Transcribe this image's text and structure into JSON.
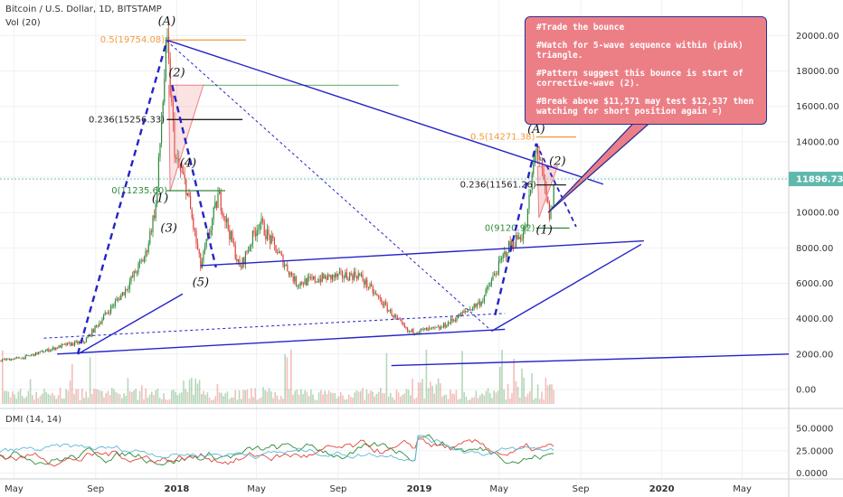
{
  "header": {
    "symbol": "Bitcoin / U.S. Dollar, 1D, BITSTAMP",
    "volume": "Vol (20)",
    "dmi": "DMI (14, 14)"
  },
  "price_box": {
    "value": "11896.73",
    "color": "#5fb8ac"
  },
  "colors": {
    "trendline": "#2424c8",
    "fib_orange": "#f39a3d",
    "up": "#2e8b3a",
    "down": "#e0443c"
  },
  "callout": {
    "lines": [
      "#Trade the bounce",
      "#Watch for 5-wave sequence within (pink) triangle.",
      "#Pattern suggest this bounce is start of corrective-wave (2).",
      "#Break above $11,571 may test $12,537 then watching for short position again =)"
    ]
  },
  "chart_data": [
    {
      "type": "line",
      "title": "Bitcoin / U.S. Dollar, 1D, BITSTAMP",
      "x_ticks": [
        "May",
        "Sep",
        "2018",
        "May",
        "Sep",
        "2019",
        "May",
        "Sep",
        "2020",
        "May"
      ],
      "y_ticks": [
        "20000.00",
        "18000.00",
        "16000.00",
        "14000.00",
        "12000.00",
        "10000.00",
        "8000.00",
        "6000.00",
        "4000.00",
        "2000.00",
        "0.00"
      ],
      "ylim": [
        0,
        21800
      ],
      "x": [
        "2017-05",
        "2017-07",
        "2017-08",
        "2017-09",
        "2017-10",
        "2017-11",
        "2017-12-01",
        "2017-12-17",
        "2017-12-30",
        "2018-01-15",
        "2018-02-06",
        "2018-03-05",
        "2018-04-06",
        "2018-05-05",
        "2018-06-30",
        "2018-08-10",
        "2018-10-01",
        "2018-11-20",
        "2018-12-15",
        "2019-02-01",
        "2019-04-05",
        "2019-05-14",
        "2019-06-10",
        "2019-06-26",
        "2019-07-17",
        "2019-07-24"
      ],
      "series": [
        {
          "values": [
            1800,
            2500,
            2700,
            4200,
            5600,
            7600,
            10500,
            19700,
            13000,
            11500,
            6900,
            11000,
            6800,
            9500,
            6000,
            6300,
            6500,
            4300,
            3250,
            3450,
            5000,
            8000,
            9000,
            13900,
            9600,
            11897
          ]
        }
      ],
      "annotations": [
        "(A)",
        "(2)",
        "(4)",
        "(1)",
        "(3)",
        "(5)",
        "(A)",
        "(2)",
        "(1)",
        "0.5(19754.08)",
        "0.236(15256.33)",
        "0(11235.60)",
        "0.5(14271.38)",
        "0.236(11561.26)",
        "0(9120.92)"
      ],
      "grid": true
    },
    {
      "type": "line",
      "title": "DMI (14, 14)",
      "y_ticks": [
        "50.0000",
        "25.0000",
        "0.0000"
      ],
      "ylim": [
        0,
        60
      ],
      "grid": true
    }
  ]
}
